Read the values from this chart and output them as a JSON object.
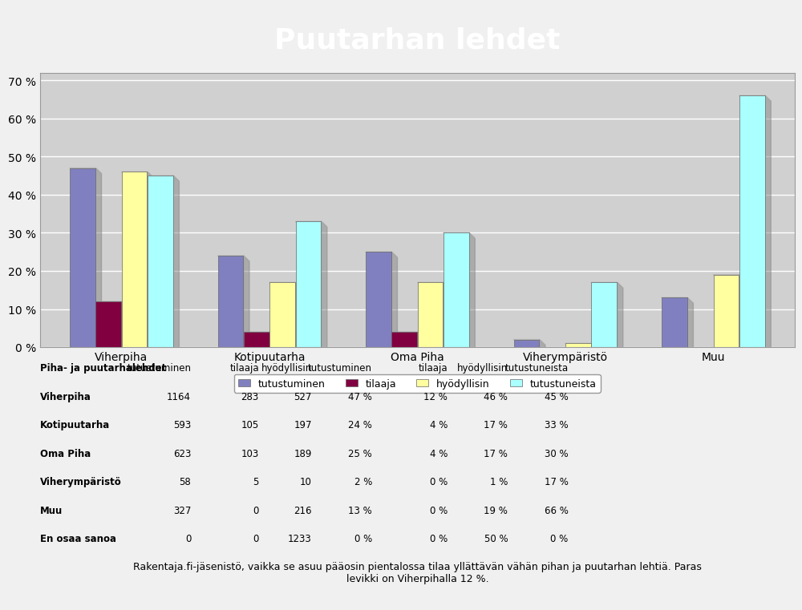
{
  "title": "Puutarhan lehdet",
  "title_bg": "#0000FF",
  "title_color": "#FFFFFF",
  "categories": [
    "Viherpiha",
    "Kotipuutarha",
    "Oma Piha",
    "Viherympäristö",
    "Muu"
  ],
  "series": {
    "tutustuminen": [
      47,
      24,
      25,
      2,
      13
    ],
    "tilaaja": [
      12,
      4,
      4,
      0,
      0
    ],
    "hyödyllisin": [
      46,
      17,
      17,
      1,
      19
    ],
    "tutustuneista": [
      45,
      33,
      30,
      17,
      66
    ]
  },
  "colors": {
    "tutustuminen": "#8080C0",
    "tilaaja": "#800040",
    "hyödyllisin": "#FFFFA0",
    "tutustuneista": "#AAFFFF"
  },
  "legend_labels": [
    "tutustuminen",
    "tilaaja",
    "hyödyllisin",
    "tutustuneista"
  ],
  "yticks": [
    0,
    10,
    20,
    30,
    40,
    50,
    60,
    70
  ],
  "ymax": 72,
  "chart_bg": "#C0C0C0",
  "plot_bg": "#D0D0D0",
  "table_header": [
    "Piha- ja puutarhalehdet",
    "tutustuminen",
    "tilaaja",
    "hyödyllisin",
    "tutustuminen",
    "tilaaja",
    "hyödyllisin",
    "tutustuneista"
  ],
  "table_rows": [
    [
      "Viherpiha",
      "1164",
      "283",
      "527",
      "47 %",
      "12 %",
      "46 %",
      "45 %"
    ],
    [
      "Kotipuutarha",
      "593",
      "105",
      "197",
      "24 %",
      "4 %",
      "17 %",
      "33 %"
    ],
    [
      "Oma Piha",
      "623",
      "103",
      "189",
      "25 %",
      "4 %",
      "17 %",
      "30 %"
    ],
    [
      "Viherympäristö",
      "58",
      "5",
      "10",
      "2 %",
      "0 %",
      "1 %",
      "17 %"
    ],
    [
      "Muu",
      "327",
      "0",
      "216",
      "13 %",
      "0 %",
      "19 %",
      "66 %"
    ],
    [
      "En osaa sanoa",
      "0",
      "0",
      "1233",
      "0 %",
      "0 %",
      "50 %",
      "0 %"
    ]
  ],
  "footer_text": "Rakentaja.fi-jäsenistö, vaikka se asuu pääosin pientalossa tilaa yllättävän vähän pihan ja puutarhan lehtiä. Paras\nlevikki on Viherpihalla 12 %.",
  "footer_bg": "#FFFF00"
}
